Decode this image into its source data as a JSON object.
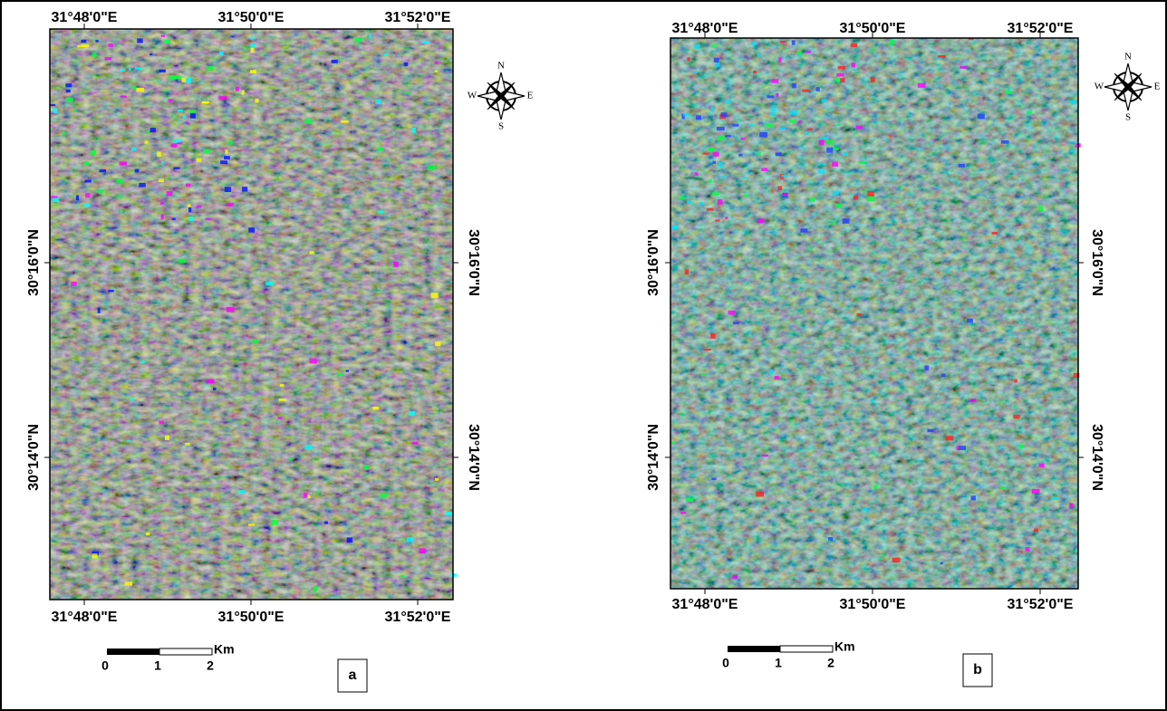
{
  "panels": [
    {
      "label": "a",
      "top_labels": [
        "31°48'0\"E",
        "31°50'0\"E",
        "31°52'0\"E"
      ],
      "bottom_labels": [
        "31°48'0\"E",
        "31°50'0\"E",
        "31°52'0\"E"
      ],
      "left_labels": [
        "30°16'0\"N",
        "30°14'0\"N"
      ],
      "right_labels": [
        "30°16'0\"N",
        "30°14'0\"N"
      ],
      "compass": {
        "n": "N",
        "s": "S",
        "e": "E",
        "w": "W"
      },
      "scale": {
        "ticks": [
          "0",
          "1",
          "2"
        ],
        "unit": "Km"
      }
    },
    {
      "label": "b",
      "top_labels": [
        "31°48'0\"E",
        "31°50'0\"E",
        "31°52'0\"E"
      ],
      "bottom_labels": [
        "31°48'0\"E",
        "31°50'0\"E",
        "31°52'0\"E"
      ],
      "left_labels": [
        "30°16'0\"N",
        "30°14'0\"N"
      ],
      "right_labels": [
        "30°16'0\"N",
        "30°14'0\"N"
      ],
      "compass": {
        "n": "N",
        "s": "S",
        "e": "E",
        "w": "W"
      },
      "scale": {
        "ticks": [
          "0",
          "1",
          "2"
        ],
        "unit": "Km"
      }
    }
  ]
}
